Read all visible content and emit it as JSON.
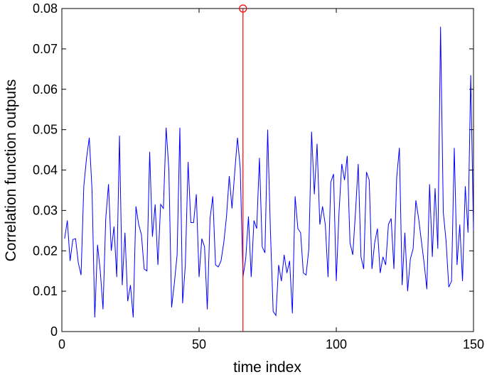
{
  "chart_data": {
    "type": "line",
    "xlabel": "time index",
    "ylabel": "Correlation function outputs",
    "xlim": [
      0,
      150
    ],
    "ylim": [
      0,
      0.08
    ],
    "xticks": [
      0,
      50,
      100,
      150
    ],
    "yticks": [
      0,
      0.01,
      0.02,
      0.03,
      0.04,
      0.05,
      0.06,
      0.07,
      0.08
    ],
    "x": [
      1,
      2,
      3,
      4,
      5,
      6,
      7,
      8,
      9,
      10,
      11,
      12,
      13,
      14,
      15,
      16,
      17,
      18,
      19,
      20,
      21,
      22,
      23,
      24,
      25,
      26,
      27,
      28,
      29,
      30,
      31,
      32,
      33,
      34,
      35,
      36,
      37,
      38,
      39,
      40,
      41,
      42,
      43,
      44,
      45,
      46,
      47,
      48,
      49,
      50,
      51,
      52,
      53,
      54,
      55,
      56,
      57,
      58,
      59,
      60,
      61,
      62,
      63,
      64,
      65,
      66,
      67,
      68,
      69,
      70,
      71,
      72,
      73,
      74,
      75,
      76,
      77,
      78,
      79,
      80,
      81,
      82,
      83,
      84,
      85,
      86,
      87,
      88,
      89,
      90,
      91,
      92,
      93,
      94,
      95,
      96,
      97,
      98,
      99,
      100,
      101,
      102,
      103,
      104,
      105,
      106,
      107,
      108,
      109,
      110,
      111,
      112,
      113,
      114,
      115,
      116,
      117,
      118,
      119,
      120,
      121,
      122,
      123,
      124,
      125,
      126,
      127,
      128,
      129,
      130,
      131,
      132,
      133,
      134,
      135,
      136,
      137,
      138,
      139,
      140,
      141,
      142,
      143,
      144,
      145,
      146,
      147,
      148,
      149,
      150
    ],
    "series": [
      {
        "color": "#0000ff",
        "values": [
          0.023,
          0.0275,
          0.0175,
          0.0228,
          0.023,
          0.017,
          0.014,
          0.036,
          0.043,
          0.048,
          0.035,
          0.0035,
          0.0215,
          0.015,
          0.0055,
          0.028,
          0.0365,
          0.02,
          0.026,
          0.0135,
          0.0485,
          0.0115,
          0.0245,
          0.0075,
          0.0115,
          0.0035,
          0.031,
          0.0265,
          0.024,
          0.0155,
          0.015,
          0.0445,
          0.0235,
          0.0315,
          0.0165,
          0.0315,
          0.0305,
          0.0505,
          0.04,
          0.006,
          0.012,
          0.019,
          0.0505,
          0.007,
          0.0165,
          0.042,
          0.027,
          0.027,
          0.034,
          0.0135,
          0.023,
          0.021,
          0.0055,
          0.028,
          0.0335,
          0.0165,
          0.016,
          0.0175,
          0.022,
          0.0285,
          0.0385,
          0.0305,
          0.0395,
          0.048,
          0.0405,
          0.0135,
          0.018,
          0.0285,
          0.0135,
          0.0275,
          0.0255,
          0.043,
          0.021,
          0.0195,
          0.05,
          0.025,
          0.005,
          0.004,
          0.0165,
          0.0125,
          0.019,
          0.0145,
          0.0175,
          0.0045,
          0.0335,
          0.0255,
          0.0245,
          0.0145,
          0.014,
          0.0205,
          0.0495,
          0.034,
          0.0465,
          0.0265,
          0.031,
          0.0265,
          0.0135,
          0.037,
          0.039,
          0.0125,
          0.0295,
          0.0415,
          0.0375,
          0.0435,
          0.022,
          0.019,
          0.0295,
          0.0415,
          0.0185,
          0.0155,
          0.0395,
          0.0375,
          0.0155,
          0.022,
          0.0255,
          0.0145,
          0.0185,
          0.0165,
          0.0265,
          0.028,
          0.0155,
          0.038,
          0.0455,
          0.0115,
          0.0245,
          0.01,
          0.018,
          0.0205,
          0.0325,
          0.028,
          0.0225,
          0.017,
          0.0105,
          0.0365,
          0.0185,
          0.0355,
          0.0205,
          0.0755,
          0.0295,
          0.0225,
          0.011,
          0.0125,
          0.0455,
          0.0165,
          0.0265,
          0.0125,
          0.036,
          0.0245,
          0.0635,
          0.025
        ]
      }
    ],
    "stem": {
      "x": 66,
      "value": 0.08,
      "color": "#ff0000"
    }
  }
}
